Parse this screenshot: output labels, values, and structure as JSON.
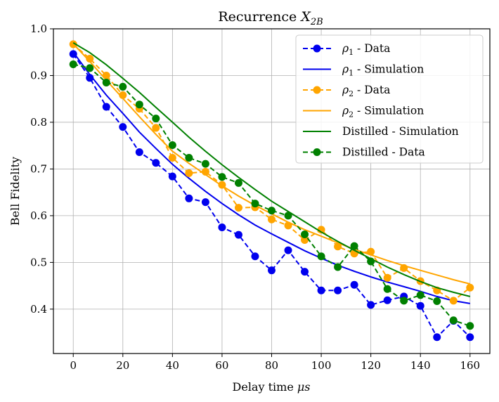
{
  "chart_data": {
    "type": "line",
    "title": "Recurrence X_2B",
    "title_parts": {
      "base": "Recurrence ",
      "math": "X",
      "sub": "2B"
    },
    "xlabel": "Delay time μs",
    "xlabel_parts": {
      "base": "Delay time ",
      "math": "μs"
    },
    "ylabel": "Bell Fidelity",
    "xlim": [
      -8,
      168
    ],
    "ylim": [
      0.305,
      1.0
    ],
    "xticks": [
      0,
      20,
      40,
      60,
      80,
      100,
      120,
      140,
      160
    ],
    "yticks": [
      0.4,
      0.5,
      0.6,
      0.7,
      0.8,
      0.9,
      1.0
    ],
    "xtick_labels": [
      "0",
      "20",
      "40",
      "60",
      "80",
      "100",
      "120",
      "140",
      "160"
    ],
    "ytick_labels": [
      "0.4",
      "0.5",
      "0.6",
      "0.7",
      "0.8",
      "0.9",
      "1.0"
    ],
    "grid": true,
    "legend_position": "top-right",
    "x": [
      0,
      6.67,
      13.33,
      20,
      26.67,
      33.33,
      40,
      46.67,
      53.33,
      60,
      66.67,
      73.33,
      80,
      86.67,
      93.33,
      100,
      106.67,
      113.33,
      120,
      126.67,
      133.33,
      140,
      146.67,
      153.33,
      160
    ],
    "series": [
      {
        "name": "ρ1 - Data",
        "legend_math": "ρ",
        "legend_sub": "1",
        "legend_rest": " - Data",
        "kind": "data",
        "color": "#0000ee",
        "values": [
          0.946,
          0.895,
          0.833,
          0.79,
          0.736,
          0.713,
          0.684,
          0.637,
          0.629,
          0.575,
          0.559,
          0.513,
          0.483,
          0.526,
          0.48,
          0.44,
          0.44,
          0.452,
          0.409,
          0.419,
          0.427,
          0.407,
          0.34,
          0.375,
          0.34
        ]
      },
      {
        "name": "ρ1 - Simulation",
        "legend_math": "ρ",
        "legend_sub": "1",
        "legend_rest": " - Simulation",
        "kind": "simulation",
        "color": "#0000ee",
        "values": [
          0.95,
          0.902,
          0.858,
          0.819,
          0.779,
          0.744,
          0.71,
          0.68,
          0.652,
          0.626,
          0.602,
          0.58,
          0.561,
          0.543,
          0.525,
          0.509,
          0.494,
          0.481,
          0.469,
          0.458,
          0.448,
          0.438,
          0.427,
          0.418,
          0.412
        ]
      },
      {
        "name": "ρ2 - Data",
        "legend_math": "ρ",
        "legend_sub": "2",
        "legend_rest": " - Data",
        "kind": "data",
        "color": "#ffa500",
        "values": [
          0.967,
          0.936,
          0.9,
          0.858,
          0.829,
          0.788,
          0.724,
          0.691,
          0.694,
          0.666,
          0.617,
          0.618,
          0.592,
          0.579,
          0.548,
          0.57,
          0.534,
          0.519,
          0.523,
          0.467,
          0.488,
          0.46,
          0.44,
          0.418,
          0.446
        ]
      },
      {
        "name": "ρ2 - Simulation",
        "legend_math": "ρ",
        "legend_sub": "2",
        "legend_rest": " - Simulation",
        "kind": "simulation",
        "color": "#ffa500",
        "values": [
          0.968,
          0.93,
          0.89,
          0.851,
          0.812,
          0.774,
          0.738,
          0.712,
          0.688,
          0.664,
          0.642,
          0.622,
          0.604,
          0.586,
          0.57,
          0.556,
          0.542,
          0.528,
          0.516,
          0.504,
          0.493,
          0.483,
          0.473,
          0.463,
          0.454
        ]
      },
      {
        "name": "Distilled - Simulation",
        "legend_rest": "Distilled - Simulation",
        "kind": "simulation",
        "color": "#008000",
        "values": [
          0.97,
          0.949,
          0.923,
          0.894,
          0.864,
          0.832,
          0.8,
          0.768,
          0.738,
          0.709,
          0.682,
          0.656,
          0.631,
          0.609,
          0.587,
          0.565,
          0.545,
          0.526,
          0.508,
          0.49,
          0.474,
          0.459,
          0.446,
          0.436,
          0.427
        ]
      },
      {
        "name": "Distilled - Data",
        "legend_rest": "Distilled - Data",
        "kind": "data",
        "color": "#008000",
        "values": [
          0.924,
          0.916,
          0.885,
          0.876,
          0.838,
          0.808,
          0.751,
          0.724,
          0.711,
          0.683,
          0.67,
          0.626,
          0.611,
          0.6,
          0.56,
          0.513,
          0.49,
          0.535,
          0.502,
          0.443,
          0.418,
          0.43,
          0.417,
          0.376,
          0.364
        ]
      }
    ]
  }
}
